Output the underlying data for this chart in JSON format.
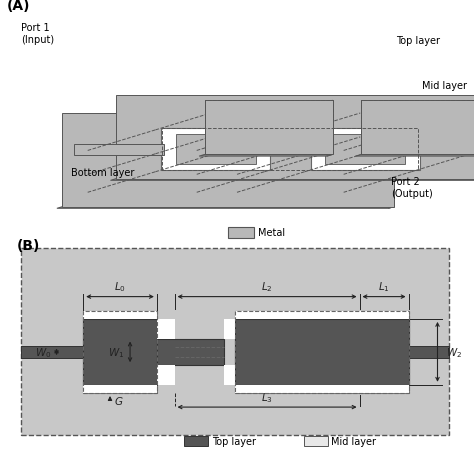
{
  "fig_width": 4.74,
  "fig_height": 4.56,
  "dpi": 100,
  "bg_color": "#ffffff",
  "panel_A": {
    "label": "(A)",
    "plate_light": "#b8b8b8",
    "plate_dark": "#888888",
    "plate_edge": "#555555",
    "white": "#ffffff",
    "top_layer_label": "Top layer",
    "mid_layer_label": "Mid layer",
    "bottom_layer_label": "Bottom layer",
    "port1_label": "Port 1\n(Input)",
    "port2_label": "Port 2\n(Output)",
    "metal_label": "Metal"
  },
  "panel_B": {
    "label": "(B)",
    "bg_color": "#c8c8c8",
    "top_layer_color": "#555555",
    "mid_layer_color": "#e8e8e8",
    "white_color": "#ffffff",
    "dim_color": "#222222",
    "legend_top_label": "Top layer",
    "legend_mid_label": "Mid layer"
  }
}
